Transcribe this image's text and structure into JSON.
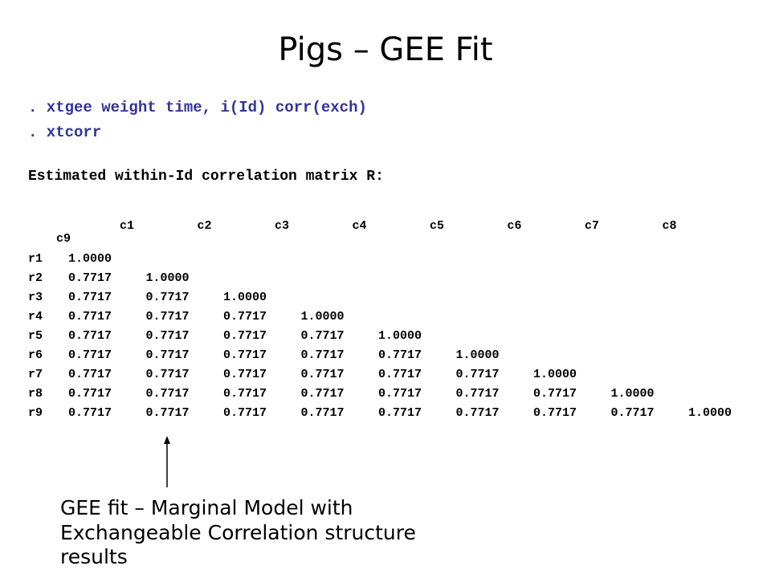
{
  "title": "Pigs – GEE Fit",
  "commands": [
    ". xtgee weight time, i(Id) corr(exch)",
    ". xtcorr"
  ],
  "heading": "Estimated within-Id correlation matrix R:",
  "matrix": {
    "columns": [
      "c1",
      "c2",
      "c3",
      "c4",
      "c5",
      "c6",
      "c7",
      "c8",
      "c9"
    ],
    "rows": [
      {
        "label": "r1",
        "cells": [
          "1.0000"
        ]
      },
      {
        "label": "r2",
        "cells": [
          "0.7717",
          "1.0000"
        ]
      },
      {
        "label": "r3",
        "cells": [
          "0.7717",
          "0.7717",
          "1.0000"
        ]
      },
      {
        "label": "r4",
        "cells": [
          "0.7717",
          "0.7717",
          "0.7717",
          "1.0000"
        ]
      },
      {
        "label": "r5",
        "cells": [
          "0.7717",
          "0.7717",
          "0.7717",
          "0.7717",
          "1.0000"
        ]
      },
      {
        "label": "r6",
        "cells": [
          "0.7717",
          "0.7717",
          "0.7717",
          "0.7717",
          "0.7717",
          "1.0000"
        ]
      },
      {
        "label": "r7",
        "cells": [
          "0.7717",
          "0.7717",
          "0.7717",
          "0.7717",
          "0.7717",
          "0.7717",
          "1.0000"
        ]
      },
      {
        "label": "r8",
        "cells": [
          "0.7717",
          "0.7717",
          "0.7717",
          "0.7717",
          "0.7717",
          "0.7717",
          "0.7717",
          "1.0000"
        ]
      },
      {
        "label": "r9",
        "cells": [
          "0.7717",
          "0.7717",
          "0.7717",
          "0.7717",
          "0.7717",
          "0.7717",
          "0.7717",
          "0.7717",
          "1.0000"
        ]
      }
    ]
  },
  "annotation": [
    "GEE fit – Marginal Model with",
    "Exchangeable Correlation structure",
    "results"
  ]
}
